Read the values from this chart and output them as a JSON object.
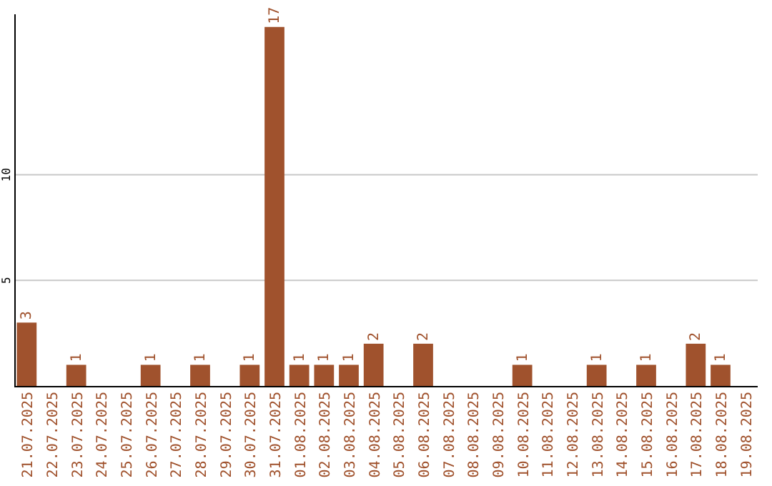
{
  "chart_data": {
    "type": "bar",
    "categories": [
      "21.07.2025",
      "22.07.2025",
      "23.07.2025",
      "24.07.2025",
      "25.07.2025",
      "26.07.2025",
      "27.07.2025",
      "28.07.2025",
      "29.07.2025",
      "30.07.2025",
      "31.07.2025",
      "01.08.2025",
      "02.08.2025",
      "03.08.2025",
      "04.08.2025",
      "05.08.2025",
      "06.08.2025",
      "07.08.2025",
      "08.08.2025",
      "09.08.2025",
      "10.08.2025",
      "11.08.2025",
      "12.08.2025",
      "13.08.2025",
      "14.08.2025",
      "15.08.2025",
      "16.08.2025",
      "17.08.2025",
      "18.08.2025",
      "19.08.2025"
    ],
    "values": [
      3,
      0,
      1,
      0,
      0,
      1,
      0,
      1,
      0,
      1,
      17,
      1,
      1,
      1,
      2,
      0,
      2,
      0,
      0,
      0,
      1,
      0,
      0,
      1,
      0,
      1,
      0,
      2,
      1,
      0
    ],
    "value_labels": [
      "3",
      null,
      "1",
      null,
      null,
      "1",
      null,
      "1",
      null,
      "1",
      "17",
      "1",
      "1",
      "1",
      "2",
      null,
      "2",
      null,
      null,
      null,
      "1",
      null,
      null,
      "1",
      null,
      "1",
      null,
      "2",
      "1",
      null
    ],
    "color": "#a0522d",
    "ylim": [
      0,
      17.6
    ],
    "yticks": [
      5,
      10
    ],
    "grid": "y"
  }
}
